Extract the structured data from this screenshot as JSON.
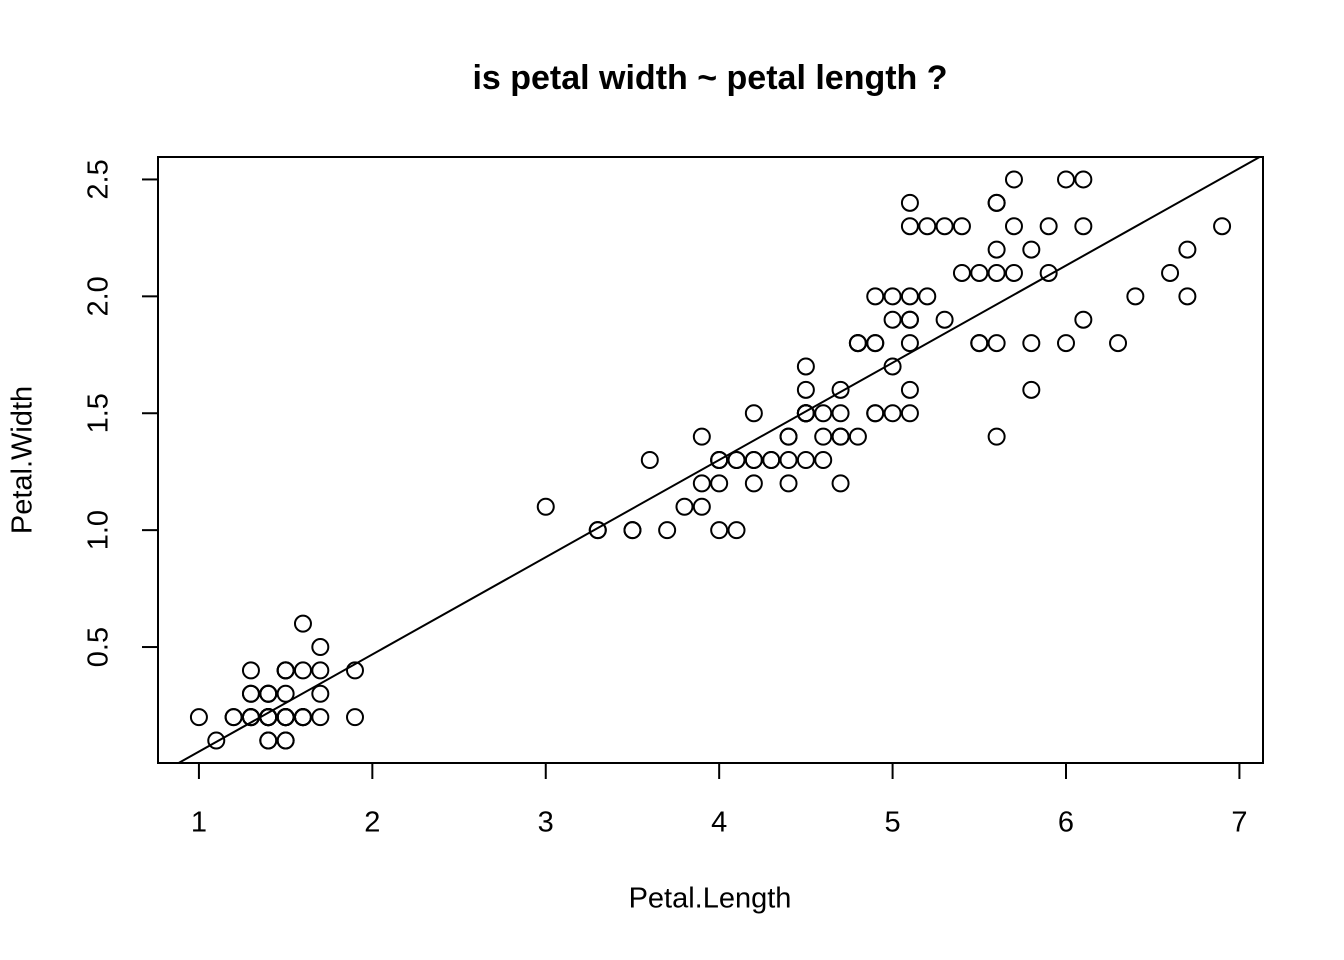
{
  "chart_data": {
    "type": "scatter",
    "title": "is petal width ~ petal length ?",
    "x_label": "Petal.Length",
    "y_label": "Petal.Width",
    "x": [
      1.4,
      1.4,
      1.3,
      1.5,
      1.4,
      1.7,
      1.4,
      1.5,
      1.4,
      1.5,
      1.5,
      1.6,
      1.4,
      1.1,
      1.2,
      1.5,
      1.3,
      1.4,
      1.7,
      1.5,
      1.7,
      1.5,
      1.0,
      1.7,
      1.9,
      1.6,
      1.6,
      1.5,
      1.4,
      1.6,
      1.6,
      1.5,
      1.5,
      1.4,
      1.5,
      1.2,
      1.3,
      1.4,
      1.3,
      1.5,
      1.3,
      1.3,
      1.3,
      1.6,
      1.9,
      1.4,
      1.6,
      1.4,
      1.5,
      1.4,
      4.7,
      4.5,
      4.9,
      4.0,
      4.6,
      4.5,
      4.7,
      3.3,
      4.6,
      3.9,
      3.5,
      4.2,
      4.0,
      4.7,
      3.6,
      4.4,
      4.5,
      4.1,
      4.5,
      3.9,
      4.8,
      4.0,
      4.9,
      4.7,
      4.3,
      4.4,
      4.8,
      5.0,
      4.5,
      3.5,
      3.8,
      3.7,
      3.9,
      5.1,
      4.5,
      4.5,
      4.7,
      4.4,
      4.1,
      4.0,
      4.4,
      4.6,
      4.0,
      3.3,
      4.2,
      4.2,
      4.2,
      4.3,
      3.0,
      4.1,
      6.0,
      5.1,
      5.9,
      5.6,
      5.8,
      6.6,
      4.5,
      6.3,
      5.8,
      6.1,
      5.1,
      5.3,
      5.5,
      5.0,
      5.1,
      5.3,
      5.5,
      6.7,
      6.9,
      5.0,
      5.7,
      4.9,
      6.7,
      4.9,
      5.7,
      6.0,
      4.8,
      4.9,
      5.6,
      5.8,
      6.1,
      6.4,
      5.6,
      5.1,
      5.6,
      6.1,
      5.6,
      5.5,
      4.8,
      5.4,
      5.6,
      5.1,
      5.1,
      5.9,
      5.7,
      5.2,
      5.0,
      5.2,
      5.4,
      5.1
    ],
    "y": [
      0.2,
      0.2,
      0.2,
      0.2,
      0.2,
      0.4,
      0.3,
      0.2,
      0.2,
      0.1,
      0.2,
      0.2,
      0.1,
      0.1,
      0.2,
      0.4,
      0.4,
      0.3,
      0.3,
      0.3,
      0.2,
      0.4,
      0.2,
      0.5,
      0.2,
      0.2,
      0.4,
      0.2,
      0.2,
      0.2,
      0.2,
      0.4,
      0.1,
      0.2,
      0.2,
      0.2,
      0.2,
      0.1,
      0.2,
      0.2,
      0.3,
      0.3,
      0.2,
      0.6,
      0.4,
      0.3,
      0.2,
      0.2,
      0.2,
      0.2,
      1.4,
      1.5,
      1.5,
      1.3,
      1.5,
      1.3,
      1.6,
      1.0,
      1.3,
      1.4,
      1.0,
      1.5,
      1.0,
      1.4,
      1.3,
      1.4,
      1.5,
      1.0,
      1.5,
      1.1,
      1.8,
      1.3,
      1.5,
      1.2,
      1.3,
      1.4,
      1.4,
      1.7,
      1.5,
      1.0,
      1.1,
      1.0,
      1.2,
      1.6,
      1.5,
      1.6,
      1.5,
      1.3,
      1.3,
      1.3,
      1.2,
      1.4,
      1.2,
      1.0,
      1.3,
      1.2,
      1.3,
      1.3,
      1.1,
      1.3,
      2.5,
      1.9,
      2.1,
      1.8,
      2.2,
      2.1,
      1.7,
      1.8,
      1.8,
      2.5,
      2.0,
      1.9,
      2.1,
      2.0,
      2.4,
      2.3,
      1.8,
      2.2,
      2.3,
      1.5,
      2.3,
      2.0,
      2.0,
      1.8,
      2.1,
      1.8,
      1.8,
      1.8,
      2.1,
      1.6,
      1.9,
      2.0,
      2.2,
      1.5,
      1.4,
      2.3,
      2.4,
      1.8,
      1.8,
      2.1,
      2.4,
      2.3,
      1.9,
      2.3,
      2.5,
      2.3,
      1.9,
      2.0,
      2.3,
      1.8
    ],
    "color": "#000000",
    "abline": {
      "intercept": -0.3631,
      "slope": 0.4158
    },
    "xlim": [
      0.764,
      7.136
    ],
    "ylim": [
      0.004,
      2.596
    ],
    "xticks": [
      1,
      2,
      3,
      4,
      5,
      6,
      7
    ],
    "yticks": [
      0.5,
      {
        "value": 1,
        "label": "1.0"
      },
      1.5,
      {
        "value": 2,
        "label": "2.0"
      },
      2.5
    ]
  }
}
